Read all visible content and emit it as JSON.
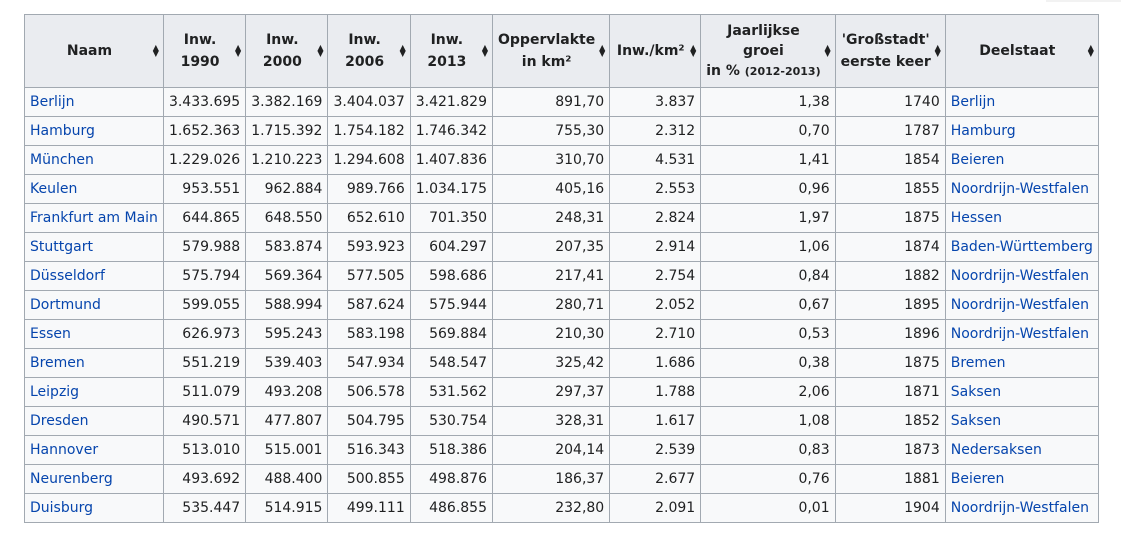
{
  "table": {
    "headers": {
      "naam": "Naam",
      "inw1990_a": "Inw.",
      "inw1990_b": "1990",
      "inw2000_a": "Inw.",
      "inw2000_b": "2000",
      "inw2006_a": "Inw.",
      "inw2006_b": "2006",
      "inw2013_a": "Inw.",
      "inw2013_b": "2013",
      "opp_a": "Oppervlakte",
      "opp_b": "in km²",
      "dichtheid": "Inw./km²",
      "groei_a": "Jaarlijkse",
      "groei_b": "groei",
      "groei_c": "in %",
      "groei_d": "(2012-2013)",
      "grossstadt_a": "'Großstadt'",
      "grossstadt_b": "eerste keer",
      "deelstaat": "Deelstaat"
    },
    "rows": [
      {
        "naam": "Berlijn",
        "i1990": "3.433.695",
        "i2000": "3.382.169",
        "i2006": "3.404.037",
        "i2013": "3.421.829",
        "opp": "891,70",
        "dicht": "3.837",
        "groei": "1,38",
        "jaar": "1740",
        "staat": "Berlijn"
      },
      {
        "naam": "Hamburg",
        "i1990": "1.652.363",
        "i2000": "1.715.392",
        "i2006": "1.754.182",
        "i2013": "1.746.342",
        "opp": "755,30",
        "dicht": "2.312",
        "groei": "0,70",
        "jaar": "1787",
        "staat": "Hamburg"
      },
      {
        "naam": "München",
        "i1990": "1.229.026",
        "i2000": "1.210.223",
        "i2006": "1.294.608",
        "i2013": "1.407.836",
        "opp": "310,70",
        "dicht": "4.531",
        "groei": "1,41",
        "jaar": "1854",
        "staat": "Beieren"
      },
      {
        "naam": "Keulen",
        "i1990": "953.551",
        "i2000": "962.884",
        "i2006": "989.766",
        "i2013": "1.034.175",
        "opp": "405,16",
        "dicht": "2.553",
        "groei": "0,96",
        "jaar": "1855",
        "staat": "Noordrijn-Westfalen"
      },
      {
        "naam": "Frankfurt am Main",
        "i1990": "644.865",
        "i2000": "648.550",
        "i2006": "652.610",
        "i2013": "701.350",
        "opp": "248,31",
        "dicht": "2.824",
        "groei": "1,97",
        "jaar": "1875",
        "staat": "Hessen"
      },
      {
        "naam": "Stuttgart",
        "i1990": "579.988",
        "i2000": "583.874",
        "i2006": "593.923",
        "i2013": "604.297",
        "opp": "207,35",
        "dicht": "2.914",
        "groei": "1,06",
        "jaar": "1874",
        "staat": "Baden-Württemberg"
      },
      {
        "naam": "Düsseldorf",
        "i1990": "575.794",
        "i2000": "569.364",
        "i2006": "577.505",
        "i2013": "598.686",
        "opp": "217,41",
        "dicht": "2.754",
        "groei": "0,84",
        "jaar": "1882",
        "staat": "Noordrijn-Westfalen"
      },
      {
        "naam": "Dortmund",
        "i1990": "599.055",
        "i2000": "588.994",
        "i2006": "587.624",
        "i2013": "575.944",
        "opp": "280,71",
        "dicht": "2.052",
        "groei": "0,67",
        "jaar": "1895",
        "staat": "Noordrijn-Westfalen"
      },
      {
        "naam": "Essen",
        "i1990": "626.973",
        "i2000": "595.243",
        "i2006": "583.198",
        "i2013": "569.884",
        "opp": "210,30",
        "dicht": "2.710",
        "groei": "0,53",
        "jaar": "1896",
        "staat": "Noordrijn-Westfalen"
      },
      {
        "naam": "Bremen",
        "i1990": "551.219",
        "i2000": "539.403",
        "i2006": "547.934",
        "i2013": "548.547",
        "opp": "325,42",
        "dicht": "1.686",
        "groei": "0,38",
        "jaar": "1875",
        "staat": "Bremen"
      },
      {
        "naam": "Leipzig",
        "i1990": "511.079",
        "i2000": "493.208",
        "i2006": "506.578",
        "i2013": "531.562",
        "opp": "297,37",
        "dicht": "1.788",
        "groei": "2,06",
        "jaar": "1871",
        "staat": "Saksen"
      },
      {
        "naam": "Dresden",
        "i1990": "490.571",
        "i2000": "477.807",
        "i2006": "504.795",
        "i2013": "530.754",
        "opp": "328,31",
        "dicht": "1.617",
        "groei": "1,08",
        "jaar": "1852",
        "staat": "Saksen"
      },
      {
        "naam": "Hannover",
        "i1990": "513.010",
        "i2000": "515.001",
        "i2006": "516.343",
        "i2013": "518.386",
        "opp": "204,14",
        "dicht": "2.539",
        "groei": "0,83",
        "jaar": "1873",
        "staat": "Nedersaksen"
      },
      {
        "naam": "Neurenberg",
        "i1990": "493.692",
        "i2000": "488.400",
        "i2006": "500.855",
        "i2013": "498.876",
        "opp": "186,37",
        "dicht": "2.677",
        "groei": "0,76",
        "jaar": "1881",
        "staat": "Beieren"
      },
      {
        "naam": "Duisburg",
        "i1990": "535.447",
        "i2000": "514.915",
        "i2006": "499.111",
        "i2013": "486.855",
        "opp": "232,80",
        "dicht": "2.091",
        "groei": "0,01",
        "jaar": "1904",
        "staat": "Noordrijn-Westfalen"
      }
    ]
  }
}
